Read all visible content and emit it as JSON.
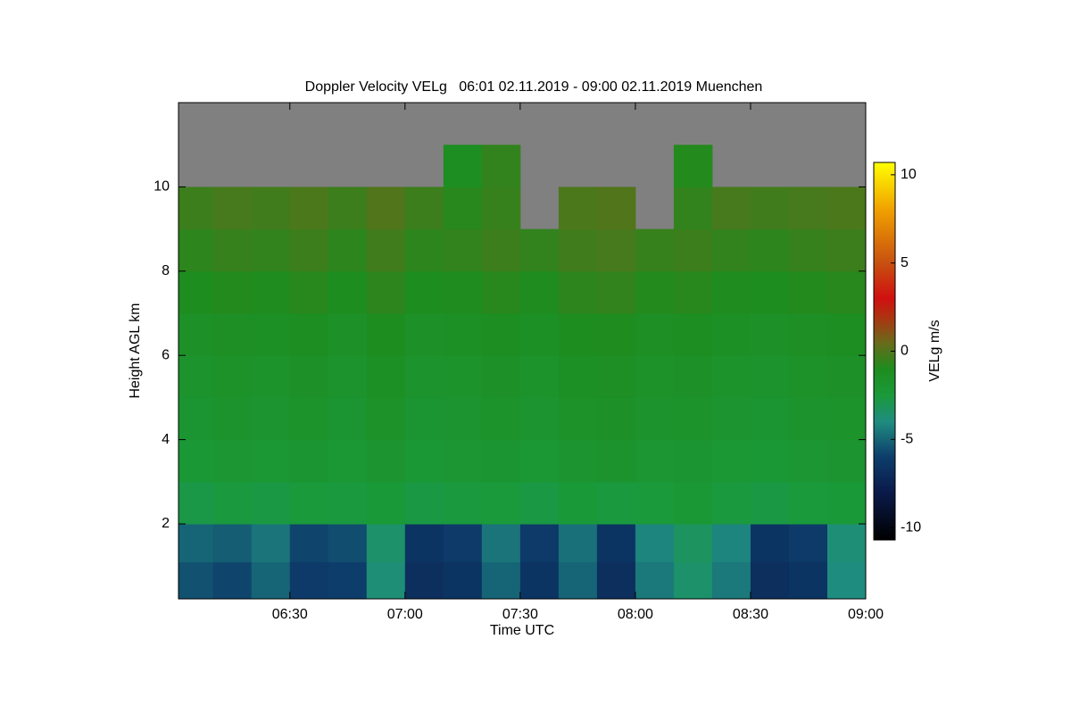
{
  "chart_data": {
    "type": "heatmap",
    "title": "Doppler Velocity VELg   06:01 02.11.2019 - 09:00 02.11.2019 Muenchen",
    "x_label": "Time UTC",
    "y_label": "Height AGL km",
    "colorbar_label": "VELg m/s",
    "xlim": [
      361,
      540
    ],
    "xticks": [
      {
        "value": 390,
        "label": "06:30"
      },
      {
        "value": 420,
        "label": "07:00"
      },
      {
        "value": 450,
        "label": "07:30"
      },
      {
        "value": 480,
        "label": "08:00"
      },
      {
        "value": 510,
        "label": "08:30"
      },
      {
        "value": 540,
        "label": "09:00"
      }
    ],
    "ylim": [
      0.22,
      12
    ],
    "yticks": [
      2,
      4,
      6,
      8,
      10
    ],
    "zlim": [
      -10.7,
      10.7
    ],
    "zticks": [
      -10,
      -5,
      0,
      5,
      10
    ],
    "nan_color": "#808080",
    "colorscale": [
      [
        -10.7,
        "#000000"
      ],
      [
        -8,
        "#0a1a4a"
      ],
      [
        -6,
        "#0d3d6b"
      ],
      [
        -4,
        "#1f8c80"
      ],
      [
        -2.5,
        "#1a9a3a"
      ],
      [
        -1,
        "#1e8c1e"
      ],
      [
        0.5,
        "#6a6a1a"
      ],
      [
        2,
        "#b03010"
      ],
      [
        3,
        "#d01010"
      ],
      [
        5,
        "#c85010"
      ],
      [
        8,
        "#f0a000"
      ],
      [
        10.7,
        "#ffff00"
      ]
    ],
    "x_edges": [
      361,
      370,
      380,
      390,
      400,
      410,
      420,
      430,
      440,
      450,
      460,
      470,
      480,
      490,
      500,
      510,
      520,
      530,
      540
    ],
    "y_edges": [
      0.22,
      1.1,
      2,
      3,
      4,
      5,
      6,
      7,
      8,
      9,
      10,
      11,
      12
    ],
    "z": [
      [
        -5.5,
        -5.8,
        -5,
        -6.2,
        -6,
        -3.8,
        -6.8,
        -6.5,
        -5,
        -6.5,
        -5,
        -6.8,
        -4.5,
        -3.5,
        -4.5,
        -6.8,
        -6.5,
        -4
      ],
      [
        -5,
        -5.2,
        -4.6,
        -5.8,
        -5.6,
        -3.5,
        -6.5,
        -6.2,
        -4.6,
        -6.2,
        -4.7,
        -6.5,
        -4.2,
        -3.3,
        -4.2,
        -6.5,
        -6.2,
        -3.8
      ],
      [
        -2.8,
        -2.6,
        -2.7,
        -2.5,
        -2.6,
        -2.4,
        -2.7,
        -2.6,
        -2.5,
        -2.7,
        -2.4,
        -2.6,
        -2.5,
        -2.3,
        -2.6,
        -2.7,
        -2.5,
        -2.4
      ],
      [
        -2.3,
        -2.1,
        -2.2,
        -2,
        -2.2,
        -1.9,
        -2.3,
        -2.1,
        -2,
        -2.2,
        -1.9,
        -1.8,
        -2.1,
        -2,
        -2.2,
        -2.3,
        -2.1,
        -1.9
      ],
      [
        -2,
        -1.8,
        -1.9,
        -1.7,
        -2,
        -1.6,
        -2,
        -1.9,
        -1.7,
        -1.9,
        -1.6,
        -1.5,
        -1.8,
        -1.7,
        -1.9,
        -2,
        -1.8,
        -1.7
      ],
      [
        -1.8,
        -1.6,
        -1.7,
        -1.5,
        -1.8,
        -1.4,
        -1.8,
        -1.7,
        -1.5,
        -1.7,
        -1.4,
        -1.3,
        -1.6,
        -1.5,
        -1.7,
        -1.8,
        -1.6,
        -1.5
      ],
      [
        -1.5,
        -1.3,
        -1.4,
        -1.2,
        -1.5,
        -1.1,
        -1.5,
        -1.4,
        -1.2,
        -1.4,
        -1.1,
        -1,
        -1.3,
        -1.2,
        -1.4,
        -1.5,
        -1.3,
        -1.2
      ],
      [
        -1.1,
        -0.9,
        -1,
        -0.8,
        -1.1,
        -0.7,
        -1.1,
        -1,
        -0.8,
        -1,
        -0.7,
        -0.6,
        -0.9,
        -0.8,
        -1,
        -1.1,
        -0.9,
        -0.8
      ],
      [
        -0.7,
        -0.5,
        -0.6,
        -0.4,
        -0.7,
        -0.3,
        -0.7,
        -0.6,
        -0.4,
        -0.6,
        -0.3,
        -0.2,
        -0.5,
        -0.4,
        -0.6,
        -0.7,
        -0.5,
        -0.4
      ],
      [
        -0.4,
        -0.2,
        -0.3,
        -0.1,
        -0.4,
        0,
        -0.4,
        -0.8,
        -0.5,
        null,
        -0.1,
        0,
        null,
        -0.6,
        -0.2,
        -0.3,
        -0.2,
        -0.1
      ],
      [
        null,
        null,
        null,
        null,
        null,
        null,
        null,
        -1.2,
        -0.6,
        null,
        null,
        null,
        null,
        -0.9,
        null,
        null,
        null,
        null
      ],
      [
        null,
        null,
        null,
        null,
        null,
        null,
        null,
        null,
        null,
        null,
        null,
        null,
        null,
        null,
        null,
        null,
        null,
        null
      ]
    ]
  }
}
